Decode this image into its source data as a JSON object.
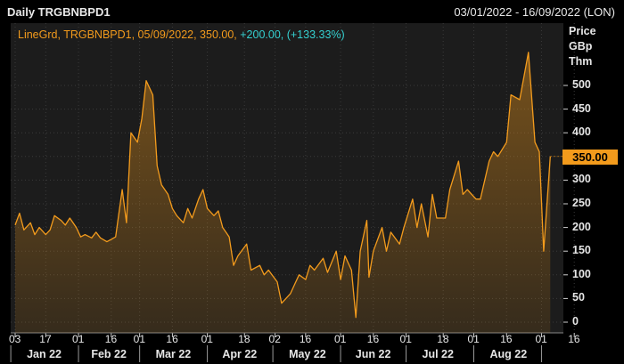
{
  "header": {
    "title": "Daily TRGBNBPD1",
    "date_range": "03/01/2022 - 16/09/2022 (LON)"
  },
  "legend": {
    "label": "LineGrd, TRGBNBPD1, 05/09/2022, 350.00, ",
    "change": "+200.00, (+133.33%)"
  },
  "axis": {
    "unit_lines": [
      "Price",
      "GBp",
      "Thm"
    ],
    "y_ticks": [
      "500",
      "450",
      "400",
      "350",
      "300",
      "250",
      "200",
      "150",
      "100",
      "50",
      "0"
    ],
    "x_ticks": [
      "03",
      "17",
      "01",
      "16",
      "01",
      "16",
      "01",
      "18",
      "02",
      "16",
      "01",
      "16",
      "01",
      "18",
      "01",
      "16",
      "01",
      "16"
    ],
    "months": [
      "Jan 22",
      "Feb 22",
      "Mar 22",
      "Apr 22",
      "May 22",
      "Jun 22",
      "Jul 22",
      "Aug 22"
    ],
    "last_value_label": "350.00"
  },
  "colors": {
    "line": "#f39b1c",
    "change": "#35d0d0",
    "last_label_bg": "#f39b1c",
    "grid": "#3a3a3a"
  },
  "chart_data": {
    "type": "area",
    "title": "Daily TRGBNBPD1",
    "ylabel": "Price GBp Thm",
    "ylim": [
      0,
      500
    ],
    "series": [
      {
        "name": "TRGBNBPD1",
        "points": [
          [
            "2022-01-03",
            205
          ],
          [
            "2022-01-05",
            230
          ],
          [
            "2022-01-07",
            195
          ],
          [
            "2022-01-10",
            210
          ],
          [
            "2022-01-12",
            185
          ],
          [
            "2022-01-14",
            200
          ],
          [
            "2022-01-17",
            185
          ],
          [
            "2022-01-19",
            195
          ],
          [
            "2022-01-21",
            225
          ],
          [
            "2022-01-24",
            215
          ],
          [
            "2022-01-26",
            205
          ],
          [
            "2022-01-28",
            220
          ],
          [
            "2022-01-31",
            200
          ],
          [
            "2022-02-02",
            180
          ],
          [
            "2022-02-04",
            185
          ],
          [
            "2022-02-07",
            178
          ],
          [
            "2022-02-09",
            190
          ],
          [
            "2022-02-11",
            178
          ],
          [
            "2022-02-14",
            170
          ],
          [
            "2022-02-16",
            175
          ],
          [
            "2022-02-18",
            180
          ],
          [
            "2022-02-21",
            280
          ],
          [
            "2022-02-23",
            210
          ],
          [
            "2022-02-25",
            400
          ],
          [
            "2022-02-28",
            380
          ],
          [
            "2022-03-02",
            430
          ],
          [
            "2022-03-04",
            510
          ],
          [
            "2022-03-07",
            480
          ],
          [
            "2022-03-09",
            330
          ],
          [
            "2022-03-11",
            290
          ],
          [
            "2022-03-14",
            270
          ],
          [
            "2022-03-16",
            240
          ],
          [
            "2022-03-18",
            225
          ],
          [
            "2022-03-21",
            210
          ],
          [
            "2022-03-23",
            240
          ],
          [
            "2022-03-25",
            220
          ],
          [
            "2022-03-28",
            260
          ],
          [
            "2022-03-30",
            280
          ],
          [
            "2022-04-01",
            240
          ],
          [
            "2022-04-04",
            225
          ],
          [
            "2022-04-06",
            235
          ],
          [
            "2022-04-08",
            200
          ],
          [
            "2022-04-11",
            180
          ],
          [
            "2022-04-13",
            120
          ],
          [
            "2022-04-15",
            140
          ],
          [
            "2022-04-19",
            165
          ],
          [
            "2022-04-21",
            110
          ],
          [
            "2022-04-25",
            120
          ],
          [
            "2022-04-27",
            100
          ],
          [
            "2022-04-29",
            110
          ],
          [
            "2022-05-03",
            85
          ],
          [
            "2022-05-05",
            40
          ],
          [
            "2022-05-09",
            60
          ],
          [
            "2022-05-11",
            80
          ],
          [
            "2022-05-13",
            100
          ],
          [
            "2022-05-16",
            90
          ],
          [
            "2022-05-18",
            120
          ],
          [
            "2022-05-20",
            110
          ],
          [
            "2022-05-24",
            135
          ],
          [
            "2022-05-26",
            105
          ],
          [
            "2022-05-30",
            150
          ],
          [
            "2022-06-01",
            90
          ],
          [
            "2022-06-03",
            140
          ],
          [
            "2022-06-06",
            110
          ],
          [
            "2022-06-08",
            10
          ],
          [
            "2022-06-10",
            150
          ],
          [
            "2022-06-13",
            215
          ],
          [
            "2022-06-14",
            95
          ],
          [
            "2022-06-16",
            150
          ],
          [
            "2022-06-20",
            200
          ],
          [
            "2022-06-22",
            150
          ],
          [
            "2022-06-24",
            190
          ],
          [
            "2022-06-28",
            165
          ],
          [
            "2022-06-30",
            200
          ],
          [
            "2022-07-04",
            260
          ],
          [
            "2022-07-06",
            200
          ],
          [
            "2022-07-08",
            250
          ],
          [
            "2022-07-11",
            180
          ],
          [
            "2022-07-13",
            270
          ],
          [
            "2022-07-15",
            220
          ],
          [
            "2022-07-19",
            220
          ],
          [
            "2022-07-21",
            280
          ],
          [
            "2022-07-25",
            340
          ],
          [
            "2022-07-27",
            270
          ],
          [
            "2022-07-29",
            280
          ],
          [
            "2022-08-02",
            260
          ],
          [
            "2022-08-04",
            260
          ],
          [
            "2022-08-08",
            340
          ],
          [
            "2022-08-10",
            360
          ],
          [
            "2022-08-12",
            350
          ],
          [
            "2022-08-16",
            380
          ],
          [
            "2022-08-18",
            480
          ],
          [
            "2022-08-22",
            470
          ],
          [
            "2022-08-24",
            520
          ],
          [
            "2022-08-26",
            570
          ],
          [
            "2022-08-29",
            380
          ],
          [
            "2022-08-31",
            360
          ],
          [
            "2022-09-02",
            150
          ],
          [
            "2022-09-05",
            350
          ]
        ]
      }
    ],
    "legend_position": "top-left",
    "grid": true
  }
}
